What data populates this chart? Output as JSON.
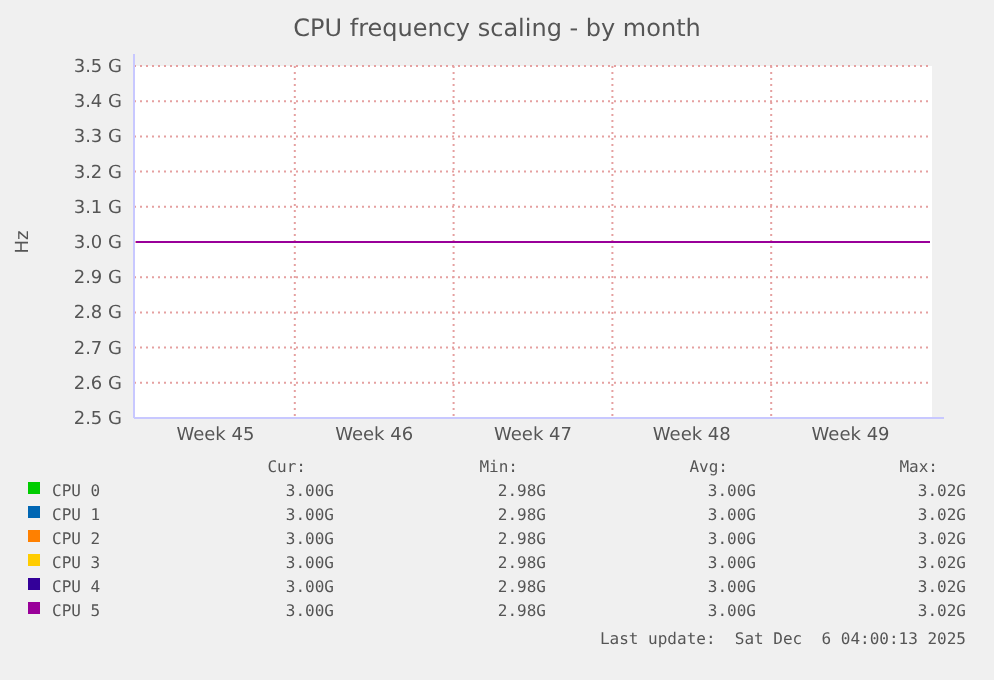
{
  "chart_data": {
    "type": "line",
    "title": "CPU frequency scaling - by month",
    "ylabel": "Hz",
    "categories": [
      null,
      "Week 45",
      null,
      "Week 46",
      null,
      "Week 47",
      null,
      "Week 48",
      null,
      "Week 49",
      null
    ],
    "ylim": [
      2.5,
      3.5
    ],
    "yticks": [
      {
        "value": 2.5,
        "label": "2.5 G"
      },
      {
        "value": 2.6,
        "label": "2.6 G"
      },
      {
        "value": 2.7,
        "label": "2.7 G"
      },
      {
        "value": 2.8,
        "label": "2.8 G"
      },
      {
        "value": 2.9,
        "label": "2.9 G"
      },
      {
        "value": 3.0,
        "label": "3.0 G"
      },
      {
        "value": 3.1,
        "label": "3.1 G"
      },
      {
        "value": 3.2,
        "label": "3.2 G"
      },
      {
        "value": 3.3,
        "label": "3.3 G"
      },
      {
        "value": 3.4,
        "label": "3.4 G"
      },
      {
        "value": 3.5,
        "label": "3.5 G"
      }
    ],
    "grid": true,
    "legend": "bottom",
    "marker": "none",
    "line_style": "solid",
    "series": [
      {
        "name": "CPU 0",
        "color": "#00cc00",
        "values": [
          null,
          null,
          null,
          null,
          null,
          null,
          null,
          null,
          null,
          null,
          null
        ]
      },
      {
        "name": "CPU 1",
        "color": "#0066b3",
        "values": [
          null,
          null,
          null,
          null,
          null,
          null,
          null,
          null,
          null,
          null,
          null
        ]
      },
      {
        "name": "CPU 2",
        "color": "#ff8000",
        "values": [
          null,
          null,
          null,
          null,
          null,
          null,
          null,
          null,
          null,
          null,
          null
        ]
      },
      {
        "name": "CPU 3",
        "color": "#ffcc00",
        "values": [
          null,
          null,
          null,
          null,
          null,
          null,
          null,
          null,
          null,
          null,
          null
        ]
      },
      {
        "name": "CPU 4",
        "color": "#330099",
        "values": [
          null,
          null,
          null,
          null,
          null,
          null,
          null,
          null,
          null,
          null,
          null
        ]
      },
      {
        "name": "CPU 5",
        "color": "#990099",
        "values": [
          3.0,
          3.0,
          3.0,
          3.0,
          3.0,
          3.0,
          3.0,
          3.0,
          3.0,
          3.0,
          3.0
        ]
      }
    ],
    "annotations": [
      "Cur:",
      "Min:",
      "Avg:",
      "Max:",
      "3.00G",
      "2.98G",
      "3.00G",
      "3.02G",
      "3.00G",
      "2.98G",
      "3.00G",
      "3.02G",
      "3.00G",
      "2.98G",
      "3.00G",
      "3.02G",
      "3.00G",
      "2.98G",
      "3.00G",
      "3.02G",
      "3.00G",
      "2.98G",
      "3.00G",
      "3.02G",
      "3.00G",
      "2.98G",
      "3.00G",
      "3.02G",
      "Last update:  Sat Dec  6 04:00:13 2025"
    ]
  }
}
